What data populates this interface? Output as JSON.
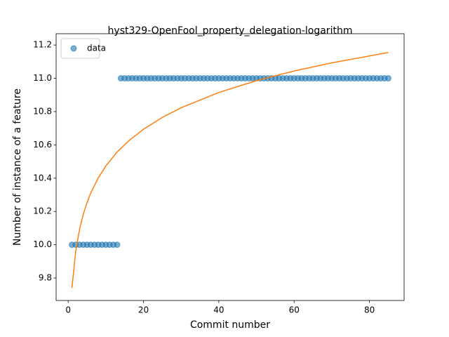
{
  "chart_data": {
    "type": "scatter",
    "title": "hyst329-OpenFool_property_delegation-logarithm",
    "xlabel": "Commit number",
    "ylabel": "Number of instance of a feature",
    "xlim": [
      -3.2,
      89.2
    ],
    "ylim": [
      9.665,
      11.268
    ],
    "xticks": [
      0,
      20,
      40,
      60,
      80
    ],
    "yticks": [
      9.8,
      {
        "value": 10,
        "label": "10.0"
      },
      10.2,
      10.4,
      10.6,
      10.8,
      {
        "value": 11,
        "label": "11.0"
      },
      11.2
    ],
    "legend": "upper left",
    "series": [
      {
        "name": "data",
        "type": "scatter",
        "color": "#1f77b4",
        "x": [
          1,
          2,
          3,
          4,
          5,
          6,
          7,
          8,
          9,
          10,
          11,
          12,
          13,
          14,
          15,
          16,
          17,
          18,
          19,
          20,
          21,
          22,
          23,
          24,
          25,
          26,
          27,
          28,
          29,
          30,
          31,
          32,
          33,
          34,
          35,
          36,
          37,
          38,
          39,
          40,
          41,
          42,
          43,
          44,
          45,
          46,
          47,
          48,
          49,
          50,
          51,
          52,
          53,
          54,
          55,
          56,
          57,
          58,
          59,
          60,
          61,
          62,
          63,
          64,
          65,
          66,
          67,
          68,
          69,
          70,
          71,
          72,
          73,
          74,
          75,
          76,
          77,
          78,
          79,
          80,
          81,
          82,
          83,
          84,
          85
        ],
        "values": [
          10,
          10,
          10,
          10,
          10,
          10,
          10,
          10,
          10,
          10,
          10,
          10,
          10,
          11,
          11,
          11,
          11,
          11,
          11,
          11,
          11,
          11,
          11,
          11,
          11,
          11,
          11,
          11,
          11,
          11,
          11,
          11,
          11,
          11,
          11,
          11,
          11,
          11,
          11,
          11,
          11,
          11,
          11,
          11,
          11,
          11,
          11,
          11,
          11,
          11,
          11,
          11,
          11,
          11,
          11,
          11,
          11,
          11,
          11,
          11,
          11,
          11,
          11,
          11,
          11,
          11,
          11,
          11,
          11,
          11,
          11,
          11,
          11,
          11,
          11,
          11,
          11,
          11,
          11,
          11,
          11,
          11,
          11,
          11,
          11
        ]
      },
      {
        "type": "line",
        "color": "#ff7f0e",
        "x": [
          1,
          2,
          3,
          4,
          5,
          6,
          8,
          10,
          13,
          16,
          20,
          25,
          30,
          40,
          50,
          60,
          70,
          85
        ],
        "values": [
          9.74,
          9.961,
          10.09,
          10.182,
          10.253,
          10.311,
          10.402,
          10.473,
          10.557,
          10.623,
          10.694,
          10.765,
          10.823,
          10.915,
          10.986,
          11.044,
          11.093,
          11.155
        ]
      }
    ]
  }
}
